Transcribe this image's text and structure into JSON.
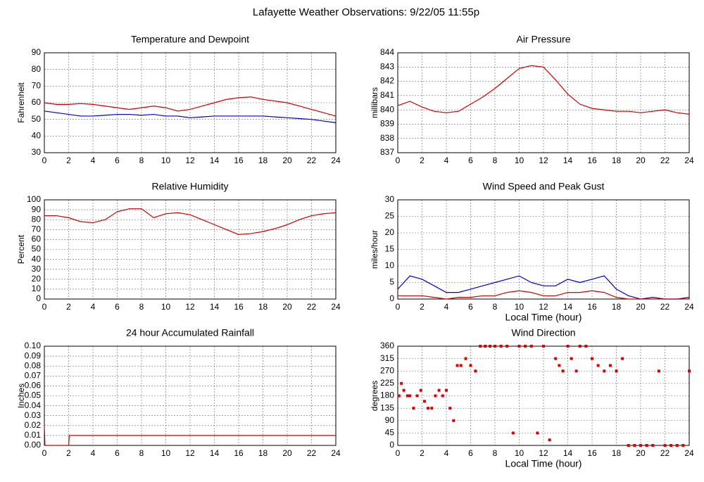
{
  "title": "Lafayette Weather Observations: 9/22/05 11:55p",
  "chart_data": [
    {
      "type": "line",
      "title": "Temperature and Dewpoint",
      "ylabel": "Fahrenheit",
      "xlim": [
        0,
        24
      ],
      "xticks": [
        0,
        2,
        4,
        6,
        8,
        10,
        12,
        14,
        16,
        18,
        20,
        22,
        24
      ],
      "ylim": [
        30,
        90
      ],
      "yticks": [
        30,
        40,
        50,
        60,
        70,
        80,
        90
      ],
      "grid": true,
      "x": [
        0,
        1,
        2,
        3,
        4,
        5,
        6,
        7,
        8,
        9,
        10,
        11,
        12,
        13,
        14,
        15,
        16,
        17,
        18,
        19,
        20,
        21,
        22,
        23,
        24
      ],
      "series": [
        {
          "color": "#cc0000",
          "values": [
            60,
            59,
            59,
            59.5,
            59,
            58,
            57,
            56,
            57,
            58,
            57,
            55,
            56,
            58,
            60,
            62,
            63,
            63.5,
            62,
            61,
            60,
            58,
            56,
            54,
            52
          ]
        },
        {
          "color": "#0000cc",
          "values": [
            55,
            54,
            53,
            52,
            52,
            52.5,
            53,
            53,
            52.5,
            53,
            52,
            52,
            51,
            51.5,
            52,
            52,
            52,
            52,
            52,
            51.5,
            51,
            50.5,
            50,
            49,
            48
          ]
        }
      ]
    },
    {
      "type": "line",
      "title": "Air Pressure",
      "ylabel": "millibars",
      "xlim": [
        0,
        24
      ],
      "xticks": [
        0,
        2,
        4,
        6,
        8,
        10,
        12,
        14,
        16,
        18,
        20,
        22,
        24
      ],
      "ylim": [
        837,
        844
      ],
      "yticks": [
        837,
        838,
        839,
        840,
        841,
        842,
        843,
        844
      ],
      "grid": true,
      "x": [
        0,
        1,
        2,
        3,
        4,
        5,
        6,
        7,
        8,
        9,
        10,
        11,
        12,
        13,
        14,
        15,
        16,
        17,
        18,
        19,
        20,
        21,
        22,
        23,
        24
      ],
      "series": [
        {
          "color": "#cc0000",
          "values": [
            840.3,
            840.6,
            840.2,
            839.9,
            839.8,
            839.9,
            840.4,
            840.9,
            841.5,
            842.2,
            842.9,
            843.1,
            843.0,
            842.1,
            841.1,
            840.4,
            840.1,
            840.0,
            839.9,
            839.9,
            839.8,
            839.9,
            840.0,
            839.8,
            839.7
          ]
        }
      ]
    },
    {
      "type": "line",
      "title": "Relative Humidity",
      "ylabel": "Percent",
      "xlim": [
        0,
        24
      ],
      "xticks": [
        0,
        2,
        4,
        6,
        8,
        10,
        12,
        14,
        16,
        18,
        20,
        22,
        24
      ],
      "ylim": [
        0,
        100
      ],
      "yticks": [
        0,
        10,
        20,
        30,
        40,
        50,
        60,
        70,
        80,
        90,
        100
      ],
      "grid": true,
      "x": [
        0,
        1,
        2,
        3,
        4,
        5,
        6,
        7,
        8,
        9,
        10,
        11,
        12,
        13,
        14,
        15,
        16,
        17,
        18,
        19,
        20,
        21,
        22,
        23,
        24
      ],
      "series": [
        {
          "color": "#cc0000",
          "values": [
            84,
            84,
            82,
            78,
            77,
            80,
            88,
            91,
            91,
            82,
            86,
            87,
            85,
            80,
            75,
            70,
            65,
            66,
            68,
            71,
            75,
            80,
            84,
            86,
            87
          ]
        }
      ]
    },
    {
      "type": "line",
      "title": "Wind Speed and Peak Gust",
      "ylabel": "miles/hour",
      "xlabel": "Local Time (hour)",
      "xlim": [
        0,
        24
      ],
      "xticks": [
        0,
        2,
        4,
        6,
        8,
        10,
        12,
        14,
        16,
        18,
        20,
        22,
        24
      ],
      "ylim": [
        0,
        30
      ],
      "yticks": [
        0,
        5,
        10,
        15,
        20,
        25,
        30
      ],
      "grid": true,
      "x": [
        0,
        1,
        2,
        3,
        4,
        5,
        6,
        7,
        8,
        9,
        10,
        11,
        12,
        13,
        14,
        15,
        16,
        17,
        18,
        19,
        20,
        21,
        22,
        23,
        24
      ],
      "series": [
        {
          "color": "#0000cc",
          "values": [
            3,
            7,
            6,
            4,
            2,
            2,
            3,
            4,
            5,
            6,
            7,
            5,
            4,
            4,
            6,
            5,
            6,
            7,
            3,
            1,
            0,
            0.5,
            0,
            0,
            0.5
          ]
        },
        {
          "color": "#cc0000",
          "values": [
            1,
            1,
            1,
            0.5,
            0,
            0.5,
            0.5,
            1,
            1,
            2,
            2.5,
            2,
            1,
            1,
            2,
            2,
            2.5,
            2,
            0.5,
            0,
            0,
            0,
            0,
            0,
            0
          ]
        }
      ]
    },
    {
      "type": "line",
      "title": "24 hour Accumulated Rainfall",
      "ylabel": "Inches",
      "xlim": [
        0,
        24
      ],
      "xticks": [
        0,
        2,
        4,
        6,
        8,
        10,
        12,
        14,
        16,
        18,
        20,
        22,
        24
      ],
      "ylim": [
        0,
        0.1
      ],
      "yticks": [
        {
          "value": 0,
          "label": "0.00"
        },
        {
          "value": 0.01,
          "label": "0.01"
        },
        {
          "value": 0.02,
          "label": "0.02"
        },
        {
          "value": 0.03,
          "label": "0.03"
        },
        {
          "value": 0.04,
          "label": "0.04"
        },
        {
          "value": 0.05,
          "label": "0.05"
        },
        {
          "value": 0.06,
          "label": "0.06"
        },
        {
          "value": 0.07,
          "label": "0.07"
        },
        {
          "value": 0.08,
          "label": "0.08"
        },
        {
          "value": 0.09,
          "label": "0.09"
        },
        {
          "value": 0.1,
          "label": "0.10"
        }
      ],
      "grid": true,
      "x": [
        0,
        0.05,
        2,
        2.05,
        24
      ],
      "series": [
        {
          "color": "#cc0000",
          "values": [
            0.02,
            0,
            0,
            0.01,
            0.01
          ]
        }
      ]
    },
    {
      "type": "scatter",
      "title": "Wind Direction",
      "ylabel": "degrees",
      "xlabel": "Local Time (hour)",
      "xlim": [
        0,
        24
      ],
      "xticks": [
        0,
        2,
        4,
        6,
        8,
        10,
        12,
        14,
        16,
        18,
        20,
        22,
        24
      ],
      "ylim": [
        0,
        360
      ],
      "yticks": [
        0,
        45,
        90,
        135,
        180,
        225,
        270,
        315,
        360
      ],
      "grid": true,
      "x": [
        0.1,
        0.3,
        0.5,
        0.8,
        1,
        1.3,
        1.6,
        1.9,
        2.2,
        2.5,
        2.8,
        3.1,
        3.4,
        3.7,
        4,
        4.3,
        4.6,
        4.9,
        5.2,
        5.6,
        6,
        6.4,
        6.8,
        7.2,
        7.6,
        8,
        8.5,
        9,
        9.5,
        10,
        10.5,
        11,
        11.5,
        12,
        12.5,
        13,
        13.3,
        13.6,
        14,
        14.3,
        14.7,
        15,
        15.5,
        16,
        16.5,
        17,
        17.5,
        18,
        18.5,
        19,
        19.5,
        20,
        20.5,
        21,
        21.5,
        22,
        22.5,
        23,
        23.5,
        24
      ],
      "series": [
        {
          "color": "#dd0000",
          "values": [
            180,
            225,
            200,
            180,
            180,
            135,
            180,
            200,
            160,
            135,
            135,
            180,
            200,
            180,
            200,
            135,
            90,
            290,
            290,
            315,
            290,
            270,
            360,
            360,
            360,
            360,
            360,
            360,
            45,
            360,
            360,
            360,
            45,
            360,
            20,
            315,
            290,
            270,
            360,
            315,
            270,
            360,
            360,
            315,
            290,
            270,
            290,
            270,
            315,
            0,
            0,
            0,
            0,
            0,
            270,
            0,
            0,
            0,
            0,
            270
          ]
        }
      ]
    }
  ]
}
